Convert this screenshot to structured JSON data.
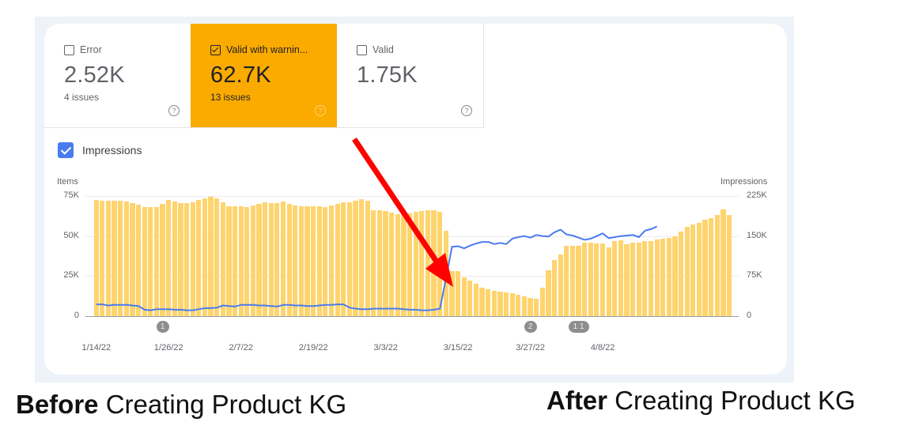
{
  "tiles": [
    {
      "label": "Error",
      "value": "2.52K",
      "sub": "4 issues",
      "checked": false,
      "selected": false
    },
    {
      "label": "Valid with warnin...",
      "value": "62.7K",
      "sub": "13 issues",
      "checked": true,
      "selected": true
    },
    {
      "label": "Valid",
      "value": "1.75K",
      "sub": "",
      "checked": false,
      "selected": false
    }
  ],
  "help_glyph": "?",
  "impressions_toggle": {
    "label": "Impressions",
    "checked": true
  },
  "captions": {
    "before_bold": "Before",
    "before_rest": " Creating Product KG",
    "after_bold": "After",
    "after_rest": " Creating Product KG"
  },
  "annotation_markers": [
    {
      "label": "1",
      "x_index": 11
    },
    {
      "label": "2",
      "x_index": 72
    },
    {
      "label": "1 1",
      "x_index": 80
    }
  ],
  "colors": {
    "bar": "#fed46e",
    "line": "#4a7cf0",
    "selected_tile": "#fbab00",
    "arrow": "#ff0000"
  },
  "chart_data": {
    "type": "bar+line",
    "title": "",
    "left_axis": {
      "label": "Items",
      "ticks": [
        "0",
        "25K",
        "50K",
        "75K"
      ],
      "range": [
        0,
        75
      ]
    },
    "right_axis": {
      "label": "Impressions",
      "ticks": [
        "0",
        "75K",
        "150K",
        "225K"
      ],
      "range": [
        0,
        225
      ]
    },
    "x_tick_labels": [
      "1/14/22",
      "1/26/22",
      "2/7/22",
      "2/19/22",
      "3/3/22",
      "3/15/22",
      "3/27/22",
      "4/8/22"
    ],
    "x_tick_indices": [
      0,
      12,
      24,
      36,
      48,
      60,
      72,
      84
    ],
    "grid": true,
    "series": [
      {
        "name": "Items (Valid with warnings)",
        "type": "bar",
        "axis": "left",
        "unit": "K",
        "values": [
          72.5,
          72,
          72,
          72,
          72,
          71.5,
          70.5,
          69.5,
          68,
          68,
          68,
          70,
          72.5,
          71.5,
          70.5,
          70.5,
          71,
          72.5,
          73.5,
          74.5,
          73.5,
          71,
          68.5,
          68.5,
          68.5,
          68,
          69,
          70,
          71,
          70.5,
          70.5,
          71.5,
          70,
          69,
          68.5,
          68.5,
          68.5,
          68.5,
          68,
          69,
          70,
          71,
          71,
          72,
          73,
          72,
          66,
          66,
          65.5,
          64.5,
          63.5,
          63.5,
          64,
          65,
          65.5,
          66,
          66,
          65,
          53.5,
          28,
          28,
          24,
          22,
          20,
          18,
          17,
          16,
          15.5,
          15,
          14.5,
          13.5,
          12.5,
          11.5,
          11,
          18,
          28.5,
          35,
          38.5,
          44,
          44,
          44,
          46,
          46,
          45.5,
          45.5,
          43,
          47,
          47.5,
          45,
          46,
          46,
          47,
          47,
          48,
          48.5,
          49,
          50,
          53,
          56,
          57,
          58,
          60,
          61,
          63,
          66.5,
          63
        ]
      },
      {
        "name": "Impressions",
        "type": "line",
        "axis": "right",
        "unit": "K",
        "values": [
          22,
          22,
          20,
          21,
          21,
          21,
          20,
          19,
          12,
          11,
          13,
          13,
          13,
          12,
          12,
          11,
          11,
          13,
          15,
          15,
          16,
          20,
          19,
          18,
          21,
          21,
          21,
          20,
          20,
          19,
          18,
          21,
          21,
          20,
          20,
          19,
          19,
          20,
          21,
          21,
          22,
          22,
          16,
          14,
          13,
          13,
          14,
          14,
          14,
          14,
          14,
          13,
          12,
          12,
          11,
          11,
          12,
          14,
          70,
          130,
          131,
          127,
          132,
          136,
          139,
          139,
          135,
          137,
          135,
          145,
          148,
          150,
          147,
          152,
          150,
          149,
          157,
          162,
          153,
          151,
          147,
          143,
          145,
          150,
          155,
          146,
          148,
          150,
          151,
          152,
          148,
          160,
          163,
          168
        ]
      }
    ]
  }
}
